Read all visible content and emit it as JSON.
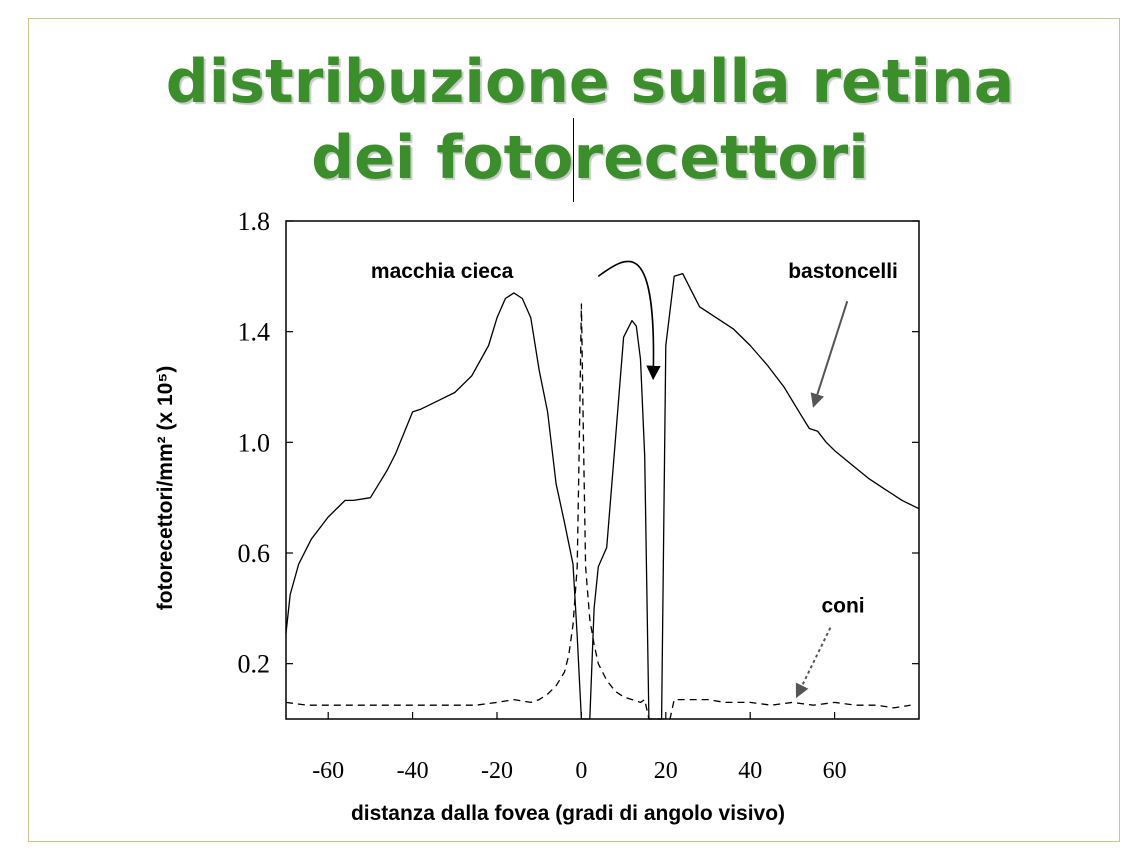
{
  "slide": {
    "title_line1": "distribuzione sulla retina",
    "title_line2": "dei fotorecettori",
    "title_color": "#3a8f2a",
    "border_color": "#c7c98a"
  },
  "chart_data": {
    "type": "line",
    "xlabel": "distanza dalla fovea (gradi di angolo visivo)",
    "ylabel": "fotorecettori/mm² (x 10⁵)",
    "xlim": [
      -70,
      80
    ],
    "ylim": [
      0.0,
      1.8
    ],
    "x_ticks": [
      -60,
      -40,
      -20,
      0,
      20,
      40,
      60
    ],
    "x_tick_labels": [
      "-60",
      "-40",
      "-20",
      "0",
      "20",
      "40",
      "60"
    ],
    "y_ticks": [
      0.2,
      0.6,
      1.0,
      1.4,
      1.8
    ],
    "y_tick_labels": [
      "0.2",
      "0.6",
      "1.0",
      "1.4",
      "1.8"
    ],
    "grid": false,
    "annotations": [
      {
        "text": "macchia cieca",
        "x": -33,
        "y": 1.62,
        "arrow_to": [
          17,
          1.23
        ],
        "arrow_from": [
          4,
          1.6
        ]
      },
      {
        "text": "bastoncelli",
        "x": 62,
        "y": 1.62,
        "arrow_to": [
          55,
          1.13
        ],
        "arrow_from": [
          63,
          1.51
        ]
      },
      {
        "text": "coni",
        "x": 62,
        "y": 0.41,
        "arrow_to": [
          51,
          0.08
        ],
        "arrow_from": [
          59,
          0.33
        ]
      }
    ],
    "series": [
      {
        "name": "bastoncelli",
        "style": "solid",
        "x": [
          -70,
          -69,
          -67,
          -64,
          -60,
          -56,
          -54,
          -50,
          -46,
          -44,
          -40,
          -38,
          -34,
          -30,
          -26,
          -22,
          -20,
          -18,
          -16,
          -14,
          -12,
          -10,
          -8,
          -6,
          -4,
          -2,
          -1,
          0,
          0.5,
          1,
          2,
          3,
          4,
          6,
          8,
          10,
          12,
          13,
          14,
          15,
          16,
          17,
          17.5,
          18,
          18.5,
          19,
          20,
          22,
          24,
          26,
          28,
          32,
          36,
          40,
          44,
          48,
          52,
          54,
          56,
          58,
          60,
          64,
          68,
          72,
          76,
          80
        ],
        "y": [
          0.31,
          0.45,
          0.56,
          0.65,
          0.73,
          0.79,
          0.79,
          0.8,
          0.9,
          0.96,
          1.11,
          1.12,
          1.15,
          1.18,
          1.24,
          1.35,
          1.45,
          1.52,
          1.54,
          1.52,
          1.45,
          1.26,
          1.11,
          0.85,
          0.71,
          0.56,
          0.3,
          0.0,
          0.0,
          0.0,
          0.0,
          0.4,
          0.55,
          0.62,
          1.0,
          1.38,
          1.44,
          1.42,
          1.3,
          0.95,
          0.0,
          0.0,
          0.0,
          0.0,
          0.0,
          0.0,
          1.35,
          1.6,
          1.61,
          1.55,
          1.49,
          1.45,
          1.41,
          1.35,
          1.28,
          1.2,
          1.1,
          1.05,
          1.04,
          1.0,
          0.97,
          0.92,
          0.87,
          0.83,
          0.79,
          0.76
        ]
      },
      {
        "name": "coni",
        "style": "dashed",
        "x": [
          -70,
          -65,
          -60,
          -55,
          -50,
          -45,
          -40,
          -35,
          -30,
          -25,
          -20,
          -16,
          -12,
          -10,
          -8,
          -6,
          -4,
          -3,
          -2,
          -1,
          -0.5,
          0,
          0.5,
          1,
          2,
          3,
          4,
          6,
          8,
          10,
          12,
          14,
          15,
          16,
          17,
          18,
          19,
          20,
          21,
          22,
          26,
          30,
          34,
          40,
          45,
          50,
          55,
          60,
          65,
          70,
          74,
          78
        ],
        "y": [
          0.06,
          0.05,
          0.05,
          0.05,
          0.05,
          0.05,
          0.05,
          0.05,
          0.05,
          0.05,
          0.06,
          0.07,
          0.06,
          0.07,
          0.09,
          0.12,
          0.17,
          0.23,
          0.34,
          0.55,
          1.0,
          1.5,
          1.0,
          0.55,
          0.36,
          0.27,
          0.2,
          0.14,
          0.1,
          0.08,
          0.07,
          0.06,
          0.07,
          0.0,
          0.0,
          0.0,
          0.0,
          0.0,
          0.0,
          0.07,
          0.07,
          0.07,
          0.06,
          0.06,
          0.05,
          0.06,
          0.05,
          0.06,
          0.05,
          0.05,
          0.04,
          0.05
        ]
      }
    ]
  }
}
